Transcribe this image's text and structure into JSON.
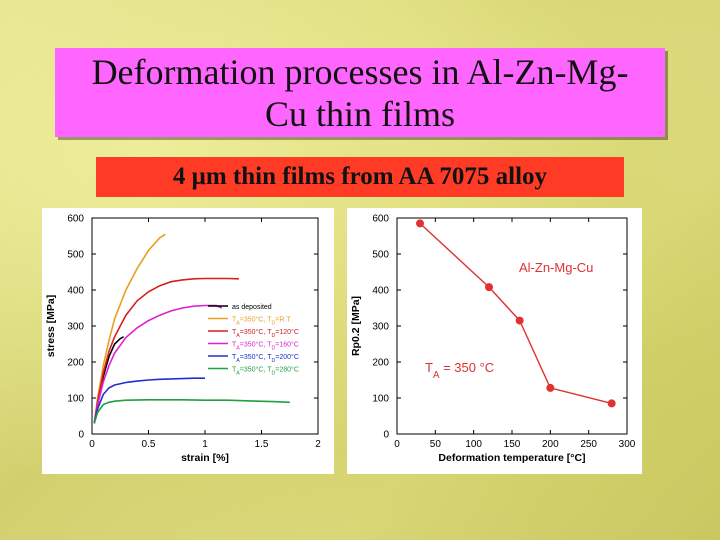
{
  "slide": {
    "title": "Deformation processes in Al-Zn-Mg-Cu thin films",
    "subtitle": "4 μm thin films from AA 7075 alloy"
  },
  "colors": {
    "background": "#dcda7e",
    "title_box": "#ff66ff",
    "subtitle_box": "#ff3b26"
  },
  "chart_data": [
    {
      "type": "line",
      "xlabel": "strain [%]",
      "ylabel": "stress [MPa]",
      "xlim": [
        0,
        2
      ],
      "ylim": [
        0,
        600
      ],
      "xticks": [
        "0",
        "0.5",
        "1",
        "1.5",
        "2"
      ],
      "yticks": [
        "0",
        "100",
        "200",
        "300",
        "400",
        "500",
        "600"
      ],
      "legend_position": "center-right",
      "series": [
        {
          "name": "as deposited",
          "color": "#000000",
          "points": [
            [
              0.02,
              30
            ],
            [
              0.05,
              90
            ],
            [
              0.1,
              160
            ],
            [
              0.15,
              215
            ],
            [
              0.2,
              250
            ],
            [
              0.25,
              265
            ],
            [
              0.28,
              270
            ]
          ]
        },
        {
          "name": "TA=350°C, TD=R.T.",
          "color": "#e8a020",
          "points": [
            [
              0.02,
              30
            ],
            [
              0.05,
              100
            ],
            [
              0.1,
              190
            ],
            [
              0.15,
              260
            ],
            [
              0.2,
              320
            ],
            [
              0.3,
              400
            ],
            [
              0.4,
              460
            ],
            [
              0.5,
              510
            ],
            [
              0.6,
              545
            ],
            [
              0.65,
              555
            ]
          ]
        },
        {
          "name": "TA=350°C, TD=120°C",
          "color": "#d42020",
          "points": [
            [
              0.02,
              30
            ],
            [
              0.05,
              90
            ],
            [
              0.1,
              170
            ],
            [
              0.15,
              230
            ],
            [
              0.2,
              270
            ],
            [
              0.3,
              330
            ],
            [
              0.4,
              370
            ],
            [
              0.5,
              395
            ],
            [
              0.6,
              412
            ],
            [
              0.7,
              423
            ],
            [
              0.8,
              428
            ],
            [
              0.9,
              431
            ],
            [
              1.0,
              432
            ],
            [
              1.1,
              432
            ],
            [
              1.2,
              432
            ],
            [
              1.3,
              431
            ]
          ]
        },
        {
          "name": "TA=350°C, TD=160°C",
          "color": "#e020d0",
          "points": [
            [
              0.02,
              30
            ],
            [
              0.05,
              80
            ],
            [
              0.1,
              145
            ],
            [
              0.15,
              190
            ],
            [
              0.2,
              225
            ],
            [
              0.3,
              268
            ],
            [
              0.4,
              295
            ],
            [
              0.5,
              315
            ],
            [
              0.6,
              330
            ],
            [
              0.7,
              342
            ],
            [
              0.8,
              350
            ],
            [
              0.9,
              355
            ],
            [
              1.0,
              357
            ],
            [
              1.1,
              357
            ],
            [
              1.15,
              350
            ]
          ]
        },
        {
          "name": "TA=350°C, TD=200°C",
          "color": "#2030d0",
          "points": [
            [
              0.02,
              30
            ],
            [
              0.05,
              70
            ],
            [
              0.1,
              110
            ],
            [
              0.15,
              128
            ],
            [
              0.2,
              136
            ],
            [
              0.3,
              143
            ],
            [
              0.4,
              147
            ],
            [
              0.5,
              150
            ],
            [
              0.6,
              152
            ],
            [
              0.7,
              153
            ],
            [
              0.8,
              154
            ],
            [
              0.9,
              155
            ],
            [
              1.0,
              155
            ]
          ]
        },
        {
          "name": "TA=350°C, TD=280°C",
          "color": "#20a040",
          "points": [
            [
              0.02,
              30
            ],
            [
              0.05,
              60
            ],
            [
              0.1,
              82
            ],
            [
              0.15,
              88
            ],
            [
              0.2,
              91
            ],
            [
              0.3,
              94
            ],
            [
              0.5,
              95
            ],
            [
              0.8,
              95
            ],
            [
              1.0,
              94
            ],
            [
              1.2,
              94
            ],
            [
              1.4,
              92
            ],
            [
              1.6,
              90
            ],
            [
              1.75,
              88
            ]
          ]
        }
      ]
    },
    {
      "type": "line",
      "xlabel": "Deformation temperature [°C]",
      "ylabel": "Rp0.2 [MPa]",
      "xlim": [
        0,
        300
      ],
      "ylim": [
        0,
        600
      ],
      "xticks": [
        "0",
        "50",
        "100",
        "150",
        "200",
        "250",
        "300"
      ],
      "yticks": [
        "0",
        "100",
        "200",
        "300",
        "400",
        "500",
        "600"
      ],
      "series_label": "Al-Zn-Mg-Cu",
      "annotation": "TA = 350 °C",
      "color": "#e03030",
      "x": [
        30,
        120,
        160,
        200,
        280
      ],
      "y": [
        585,
        408,
        315,
        128,
        85
      ]
    }
  ]
}
